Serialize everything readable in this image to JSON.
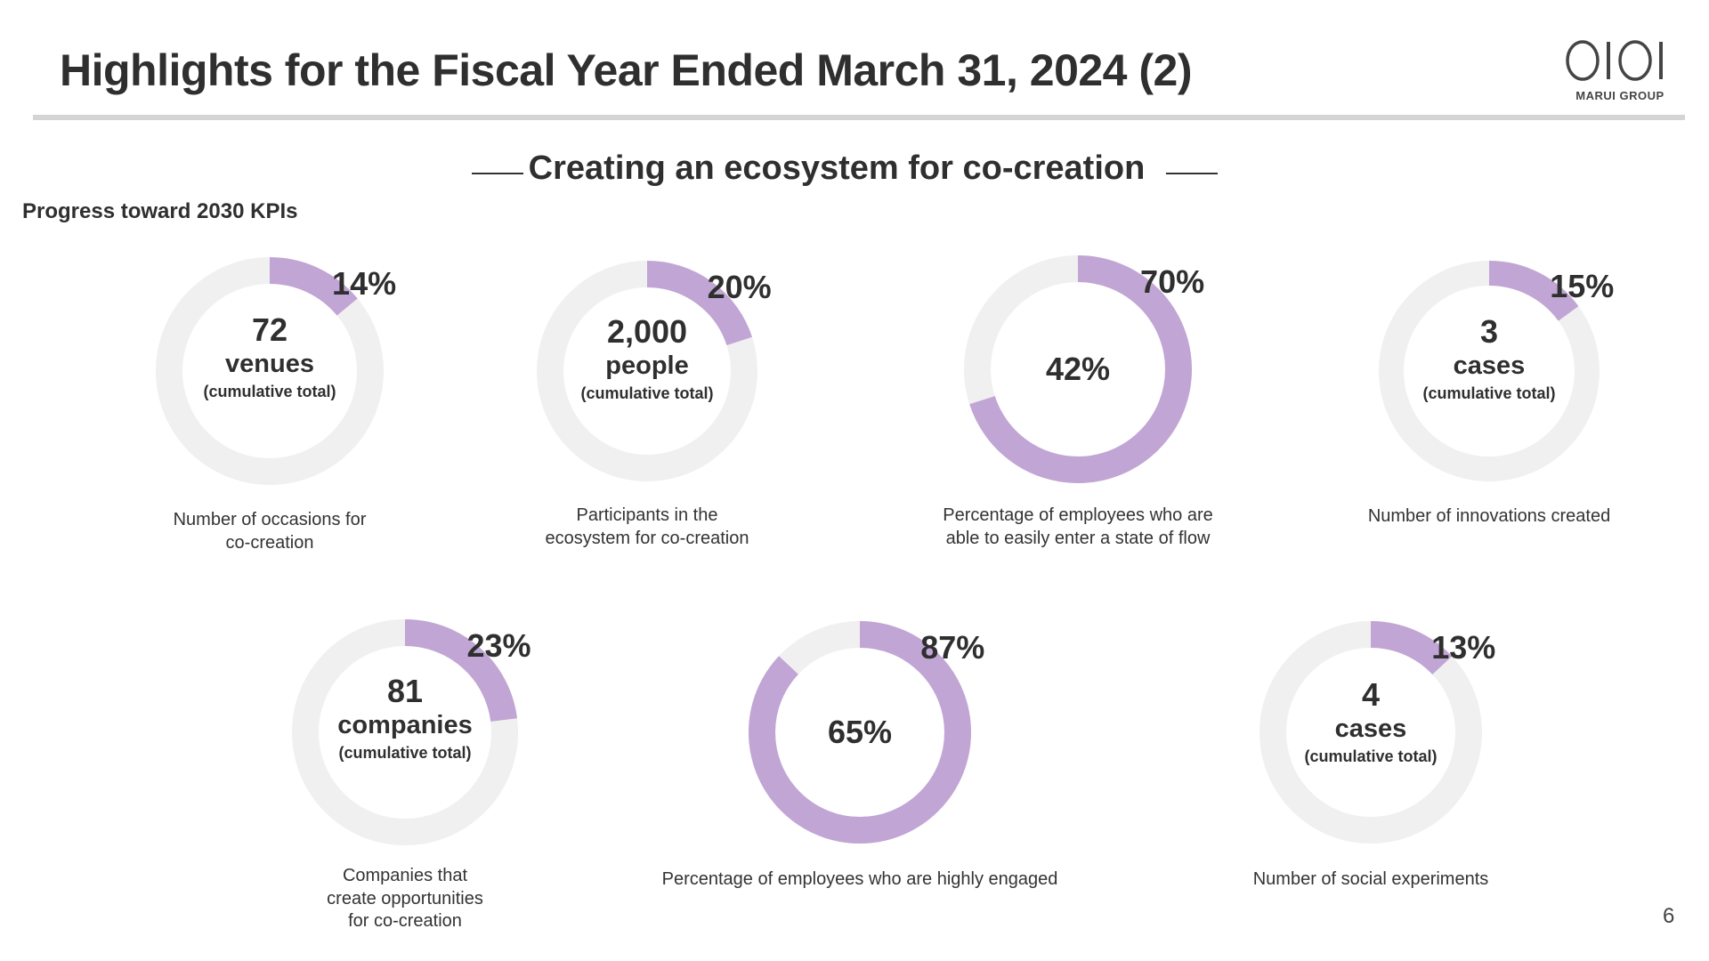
{
  "header": {
    "title": "Highlights for the Fiscal Year Ended March 31, 2024 (2)",
    "logo_text": "MARUI GROUP"
  },
  "section": {
    "title": "Creating an ecosystem for co-creation",
    "progress_label": "Progress toward 2030 KPIs"
  },
  "colors": {
    "accent": "#c1a5d4",
    "track": "#f0f0f0",
    "text": "#2f2f2f",
    "rule": "#d4d4d4"
  },
  "chart_data": {
    "type": "pie",
    "subtype": "donut-progress",
    "kpis": [
      {
        "value": "72",
        "unit": "venues",
        "note": "(cumulative total)",
        "progress_label": "14%",
        "progress": 14,
        "caption": "Number of occasions for\nco-creation"
      },
      {
        "value": "2,000",
        "unit": "people",
        "note": "(cumulative total)",
        "progress_label": "20%",
        "progress": 20,
        "caption": "Participants in the\necosystem for co-creation"
      },
      {
        "value": "42%",
        "unit": "",
        "note": "",
        "progress_label": "70%",
        "progress": 70,
        "caption": "Percentage of employees  who are\nable to easily enter a state of flow"
      },
      {
        "value": "3",
        "unit": "cases",
        "note": "(cumulative total)",
        "progress_label": "15%",
        "progress": 15,
        "caption": "Number of innovations created"
      },
      {
        "value": "81",
        "unit": "companies",
        "note": "(cumulative total)",
        "progress_label": "23%",
        "progress": 23,
        "caption": "Companies that\ncreate opportunities\nfor co-creation"
      },
      {
        "value": "65%",
        "unit": "",
        "note": "",
        "progress_label": "87%",
        "progress": 87,
        "caption": "Percentage of employees who are highly engaged"
      },
      {
        "value": "4",
        "unit": "cases",
        "note": "(cumulative total)",
        "progress_label": "13%",
        "progress": 13,
        "caption": "Number of social experiments"
      }
    ]
  },
  "footer": {
    "page_number": "6"
  }
}
